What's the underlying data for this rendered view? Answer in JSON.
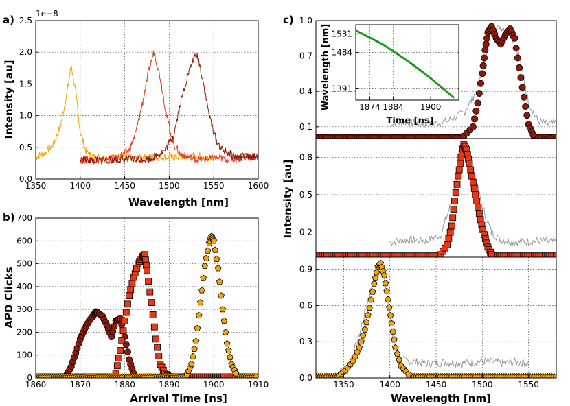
{
  "panel_labels": [
    "a)",
    "b)",
    "c)"
  ],
  "colors": {
    "dark": "#8c1a0a",
    "red": "#e8381a",
    "orange": "#f5a30f",
    "gray": "#999999",
    "green": "#1d9a1d"
  },
  "chart_data": [
    {
      "id": "a",
      "type": "line",
      "title": "",
      "xlabel": "Wavelength [nm]",
      "ylabel": "Intensity [au]",
      "y_multiplier": "1e−8",
      "xlim": [
        1350,
        1600
      ],
      "ylim": [
        0,
        2.5
      ],
      "xticks": [
        1350,
        1400,
        1450,
        1500,
        1550,
        1600
      ],
      "yticks": [
        "0.0",
        "0.5",
        "1.0",
        "1.5",
        "2.0",
        "2.5"
      ],
      "grid": true,
      "series": [
        {
          "color": "orange",
          "x": [
            1350,
            1360,
            1370,
            1378,
            1385,
            1390,
            1395,
            1400,
            1406,
            1412,
            1420,
            1440,
            1460,
            1480,
            1500,
            1520,
            1540,
            1550
          ],
          "y": [
            0.35,
            0.4,
            0.55,
            0.85,
            1.35,
            1.8,
            1.35,
            0.75,
            0.45,
            0.36,
            0.34,
            0.35,
            0.33,
            0.35,
            0.34,
            0.36,
            0.35,
            0.35
          ]
        },
        {
          "color": "red",
          "x": [
            1400,
            1420,
            1440,
            1455,
            1462,
            1470,
            1477,
            1483,
            1490,
            1497,
            1505,
            1512,
            1520,
            1535,
            1550,
            1570,
            1600
          ],
          "y": [
            0.3,
            0.3,
            0.32,
            0.45,
            0.7,
            1.2,
            1.7,
            2.02,
            1.6,
            1.0,
            0.55,
            0.4,
            0.35,
            0.3,
            0.33,
            0.32,
            0.35
          ]
        },
        {
          "color": "dark",
          "x": [
            1400,
            1420,
            1450,
            1480,
            1495,
            1505,
            1512,
            1520,
            1527,
            1532,
            1538,
            1545,
            1553,
            1560,
            1575,
            1600
          ],
          "y": [
            0.3,
            0.3,
            0.3,
            0.32,
            0.45,
            0.7,
            1.15,
            1.6,
            1.9,
            1.95,
            1.55,
            1.0,
            0.6,
            0.45,
            0.35,
            0.35
          ]
        }
      ]
    },
    {
      "id": "b",
      "type": "scatter",
      "title": "",
      "xlabel": "Arrival Time [ns]",
      "ylabel": "APD Clicks",
      "xlim": [
        1860,
        1910
      ],
      "ylim": [
        0,
        700
      ],
      "xticks": [
        1860,
        1870,
        1880,
        1890,
        1900,
        1910
      ],
      "yticks": [
        0,
        100,
        200,
        300,
        400,
        500,
        600,
        700
      ],
      "grid": true,
      "series": [
        {
          "color": "dark",
          "marker": "circle",
          "x": [
            1867,
            1868,
            1869,
            1870,
            1871,
            1872,
            1873,
            1873.5,
            1874,
            1875,
            1876,
            1877,
            1878,
            1879,
            1880,
            1881,
            1882
          ],
          "y": [
            15,
            50,
            110,
            170,
            215,
            250,
            275,
            290,
            285,
            270,
            230,
            180,
            250,
            260,
            180,
            80,
            20
          ]
        },
        {
          "color": "red",
          "marker": "square",
          "x": [
            1878,
            1879,
            1880,
            1881,
            1882,
            1883,
            1884,
            1884.5,
            1885,
            1886,
            1887,
            1888,
            1889,
            1890
          ],
          "y": [
            20,
            120,
            250,
            360,
            440,
            500,
            530,
            540,
            470,
            330,
            170,
            60,
            20,
            5
          ]
        },
        {
          "color": "orange",
          "marker": "pentagon",
          "x": [
            1894,
            1895,
            1896,
            1897,
            1898,
            1899,
            1899.5,
            1900,
            1901,
            1902,
            1903,
            1904,
            1905
          ],
          "y": [
            15,
            60,
            160,
            330,
            490,
            590,
            620,
            600,
            480,
            300,
            150,
            60,
            20
          ]
        }
      ]
    },
    {
      "id": "c1",
      "type": "scatter",
      "xlim": [
        1320,
        1580
      ],
      "ylim": [
        0,
        1.0
      ],
      "yticks": [
        "0.1",
        "0.4",
        "0.7",
        "1.0"
      ],
      "grid": true,
      "series": [
        {
          "color": "gray",
          "kind": "line",
          "x": [
            1400,
            1420,
            1440,
            1460,
            1480,
            1490,
            1500,
            1505,
            1510,
            1520,
            1530,
            1540,
            1550,
            1560,
            1570,
            1580
          ],
          "y": [
            0.13,
            0.14,
            0.12,
            0.14,
            0.22,
            0.35,
            0.55,
            0.75,
            0.9,
            0.95,
            0.9,
            0.7,
            0.3,
            0.15,
            0.12,
            0.13
          ]
        },
        {
          "color": "dark",
          "marker": "circle",
          "x": [
            1480,
            1490,
            1495,
            1500,
            1503,
            1506,
            1510,
            1515,
            1520,
            1525,
            1530,
            1535,
            1540,
            1545,
            1550,
            1555
          ],
          "y": [
            0.02,
            0.1,
            0.3,
            0.55,
            0.75,
            0.9,
            0.95,
            0.85,
            0.8,
            0.88,
            0.93,
            0.85,
            0.6,
            0.35,
            0.12,
            0.03
          ]
        }
      ]
    },
    {
      "id": "c2",
      "type": "scatter",
      "ylabel": "Intensity [au]",
      "xlim": [
        1320,
        1580
      ],
      "ylim": [
        0,
        0.95
      ],
      "yticks": [
        "0.2",
        "0.5",
        "0.8"
      ],
      "grid": true,
      "series": [
        {
          "color": "gray",
          "kind": "line",
          "x": [
            1400,
            1420,
            1440,
            1455,
            1465,
            1475,
            1480,
            1485,
            1492,
            1500,
            1510,
            1520,
            1540,
            1560,
            1580
          ],
          "y": [
            0.12,
            0.14,
            0.13,
            0.18,
            0.4,
            0.7,
            0.88,
            0.85,
            0.65,
            0.4,
            0.2,
            0.14,
            0.12,
            0.13,
            0.12
          ]
        },
        {
          "color": "red",
          "marker": "square",
          "x": [
            1455,
            1462,
            1467,
            1470,
            1474,
            1477,
            1480,
            1483,
            1486,
            1490,
            1494,
            1498,
            1502,
            1506,
            1510
          ],
          "y": [
            0.02,
            0.1,
            0.25,
            0.45,
            0.65,
            0.8,
            0.9,
            0.86,
            0.75,
            0.6,
            0.45,
            0.3,
            0.18,
            0.08,
            0.02
          ]
        }
      ]
    },
    {
      "id": "c3",
      "type": "scatter",
      "xlabel": "Wavelength [nm]",
      "xlim": [
        1320,
        1580
      ],
      "ylim": [
        0,
        1.0
      ],
      "xticks": [
        1350,
        1400,
        1450,
        1500,
        1550
      ],
      "yticks": [
        "0.0",
        "0.3",
        "0.6",
        "0.9"
      ],
      "grid": true,
      "series": [
        {
          "color": "gray",
          "kind": "line",
          "x": [
            1340,
            1355,
            1365,
            1375,
            1385,
            1390,
            1395,
            1400,
            1405,
            1412,
            1420,
            1440,
            1460,
            1480,
            1500,
            1520,
            1540,
            1550
          ],
          "y": [
            0.03,
            0.1,
            0.3,
            0.6,
            0.9,
            0.95,
            0.8,
            0.5,
            0.25,
            0.15,
            0.14,
            0.12,
            0.13,
            0.12,
            0.14,
            0.12,
            0.13,
            0.12
          ]
        },
        {
          "color": "orange",
          "marker": "pentagon",
          "x": [
            1345,
            1352,
            1360,
            1367,
            1373,
            1378,
            1383,
            1387,
            1390,
            1394,
            1398,
            1402,
            1406,
            1412,
            1420
          ],
          "y": [
            0.02,
            0.06,
            0.14,
            0.25,
            0.4,
            0.58,
            0.78,
            0.92,
            0.95,
            0.85,
            0.65,
            0.45,
            0.25,
            0.1,
            0.03
          ]
        }
      ]
    },
    {
      "id": "c_inset",
      "type": "line",
      "xlabel": "Time [ns]",
      "ylabel": "Wavelength [nm]",
      "xlim": [
        1868,
        1912
      ],
      "ylim": [
        1362,
        1555
      ],
      "xticks": [
        1874,
        1884,
        1900
      ],
      "yticks": [
        1391,
        1484,
        1531
      ],
      "grid": true,
      "series": [
        {
          "color": "green",
          "x": [
            1868,
            1874,
            1880,
            1884,
            1890,
            1895,
            1900,
            1905,
            1910
          ],
          "y": [
            1540,
            1522,
            1503,
            1487,
            1463,
            1441,
            1418,
            1393,
            1368
          ]
        }
      ]
    }
  ]
}
